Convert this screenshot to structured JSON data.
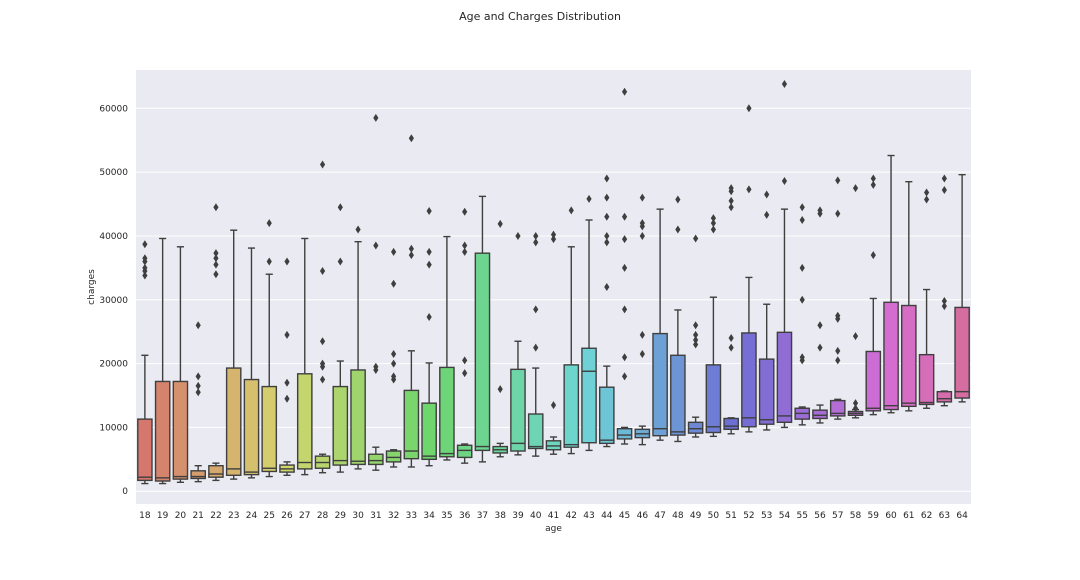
{
  "chart_data": {
    "type": "box",
    "title": "Age and Charges Distribution",
    "xlabel": "age",
    "ylabel": "charges",
    "ylim": [
      -2000,
      66000
    ],
    "yticks": [
      0,
      10000,
      20000,
      30000,
      40000,
      50000,
      60000
    ],
    "grid": true,
    "legend": "none",
    "categories": [
      "18",
      "19",
      "20",
      "21",
      "22",
      "23",
      "24",
      "25",
      "26",
      "27",
      "28",
      "29",
      "30",
      "31",
      "32",
      "33",
      "34",
      "35",
      "36",
      "37",
      "38",
      "39",
      "40",
      "41",
      "42",
      "43",
      "44",
      "45",
      "46",
      "47",
      "48",
      "49",
      "50",
      "51",
      "52",
      "53",
      "54",
      "55",
      "56",
      "57",
      "58",
      "59",
      "60",
      "61",
      "62",
      "63",
      "64"
    ],
    "boxes": [
      {
        "whislo": 1200,
        "q1": 1700,
        "med": 2200,
        "q3": 11300,
        "whishi": 21300,
        "fliers": [
          33800,
          34500,
          35000,
          36000,
          36500,
          38700
        ]
      },
      {
        "whislo": 1200,
        "q1": 1600,
        "med": 2100,
        "q3": 17200,
        "whishi": 39600,
        "fliers": []
      },
      {
        "whislo": 1400,
        "q1": 1900,
        "med": 2300,
        "q3": 17200,
        "whishi": 38300,
        "fliers": []
      },
      {
        "whislo": 1500,
        "q1": 2000,
        "med": 2300,
        "q3": 3200,
        "whishi": 4000,
        "fliers": [
          15500,
          16500,
          18000,
          26000
        ]
      },
      {
        "whislo": 1700,
        "q1": 2200,
        "med": 2700,
        "q3": 4000,
        "whishi": 4400,
        "fliers": [
          34000,
          35500,
          36500,
          37300,
          44500
        ]
      },
      {
        "whislo": 1900,
        "q1": 2500,
        "med": 3500,
        "q3": 19300,
        "whishi": 40900,
        "fliers": []
      },
      {
        "whislo": 2100,
        "q1": 2600,
        "med": 3000,
        "q3": 17500,
        "whishi": 38100,
        "fliers": []
      },
      {
        "whislo": 2300,
        "q1": 3100,
        "med": 3600,
        "q3": 16400,
        "whishi": 34000,
        "fliers": [
          36000,
          42000
        ]
      },
      {
        "whislo": 2500,
        "q1": 3000,
        "med": 3500,
        "q3": 4100,
        "whishi": 4600,
        "fliers": [
          14500,
          17000,
          24500,
          36000
        ]
      },
      {
        "whislo": 2600,
        "q1": 3500,
        "med": 4500,
        "q3": 18400,
        "whishi": 39600,
        "fliers": []
      },
      {
        "whislo": 2900,
        "q1": 3600,
        "med": 4500,
        "q3": 5500,
        "whishi": 5800,
        "fliers": [
          17500,
          19500,
          20000,
          23500,
          34500,
          51200
        ]
      },
      {
        "whislo": 3000,
        "q1": 4100,
        "med": 4800,
        "q3": 16400,
        "whishi": 20400,
        "fliers": [
          36000,
          44500
        ]
      },
      {
        "whislo": 3500,
        "q1": 4200,
        "med": 4700,
        "q3": 19000,
        "whishi": 39100,
        "fliers": [
          41000
        ]
      },
      {
        "whislo": 3300,
        "q1": 4200,
        "med": 4800,
        "q3": 5800,
        "whishi": 6900,
        "fliers": [
          19000,
          19500,
          38500,
          58500
        ]
      },
      {
        "whislo": 3800,
        "q1": 4600,
        "med": 5300,
        "q3": 6300,
        "whishi": 6500,
        "fliers": [
          17500,
          18000,
          20000,
          21500,
          32500,
          37500
        ]
      },
      {
        "whislo": 3800,
        "q1": 5100,
        "med": 6300,
        "q3": 15800,
        "whishi": 22000,
        "fliers": [
          37000,
          38000,
          55300
        ]
      },
      {
        "whislo": 4000,
        "q1": 5000,
        "med": 5500,
        "q3": 13800,
        "whishi": 20100,
        "fliers": [
          27300,
          35500,
          37500,
          43900
        ]
      },
      {
        "whislo": 4900,
        "q1": 5400,
        "med": 5900,
        "q3": 19400,
        "whishi": 39900,
        "fliers": []
      },
      {
        "whislo": 4400,
        "q1": 5300,
        "med": 6400,
        "q3": 7200,
        "whishi": 7400,
        "fliers": [
          18500,
          20500,
          37500,
          38500,
          43800
        ]
      },
      {
        "whislo": 4600,
        "q1": 6400,
        "med": 7000,
        "q3": 37300,
        "whishi": 46200,
        "fliers": []
      },
      {
        "whislo": 5400,
        "q1": 6000,
        "med": 6500,
        "q3": 7000,
        "whishi": 7500,
        "fliers": [
          16000,
          41900
        ]
      },
      {
        "whislo": 5700,
        "q1": 6300,
        "med": 7500,
        "q3": 19100,
        "whishi": 23500,
        "fliers": [
          40000
        ]
      },
      {
        "whislo": 5500,
        "q1": 6700,
        "med": 7000,
        "q3": 12100,
        "whishi": 19300,
        "fliers": [
          22500,
          28500,
          39000,
          40000
        ]
      },
      {
        "whislo": 5800,
        "q1": 6500,
        "med": 7100,
        "q3": 7900,
        "whishi": 8500,
        "fliers": [
          13500,
          39500,
          40200
        ]
      },
      {
        "whislo": 5900,
        "q1": 6900,
        "med": 7300,
        "q3": 19800,
        "whishi": 38300,
        "fliers": [
          44000
        ]
      },
      {
        "whislo": 6400,
        "q1": 7600,
        "med": 18800,
        "q3": 22400,
        "whishi": 42500,
        "fliers": [
          45800
        ]
      },
      {
        "whislo": 7000,
        "q1": 7500,
        "med": 8000,
        "q3": 16300,
        "whishi": 19600,
        "fliers": [
          32000,
          39000,
          40000,
          43000,
          46000,
          49000
        ]
      },
      {
        "whislo": 7400,
        "q1": 8200,
        "med": 8800,
        "q3": 9800,
        "whishi": 10000,
        "fliers": [
          18000,
          21000,
          28500,
          35000,
          39500,
          43000,
          62600
        ]
      },
      {
        "whislo": 7300,
        "q1": 8400,
        "med": 9000,
        "q3": 9700,
        "whishi": 10200,
        "fliers": [
          21500,
          24500,
          40000,
          41500,
          42000,
          46000
        ]
      },
      {
        "whislo": 8000,
        "q1": 8700,
        "med": 9800,
        "q3": 24700,
        "whishi": 44200,
        "fliers": []
      },
      {
        "whislo": 7800,
        "q1": 8800,
        "med": 9300,
        "q3": 21300,
        "whishi": 28400,
        "fliers": [
          41000,
          45700
        ]
      },
      {
        "whislo": 8500,
        "q1": 9100,
        "med": 9800,
        "q3": 10800,
        "whishi": 11600,
        "fliers": [
          23000,
          23700,
          24500,
          26000,
          39600
        ]
      },
      {
        "whislo": 8600,
        "q1": 9200,
        "med": 10100,
        "q3": 19800,
        "whishi": 30400,
        "fliers": [
          41000,
          42000,
          42800
        ]
      },
      {
        "whislo": 9000,
        "q1": 9700,
        "med": 10200,
        "q3": 11400,
        "whishi": 11500,
        "fliers": [
          22500,
          24000,
          44500,
          45500,
          47000,
          47500
        ]
      },
      {
        "whislo": 9300,
        "q1": 10100,
        "med": 11500,
        "q3": 24800,
        "whishi": 33500,
        "fliers": [
          47300,
          60000
        ]
      },
      {
        "whislo": 9600,
        "q1": 10500,
        "med": 11200,
        "q3": 20700,
        "whishi": 29300,
        "fliers": [
          43300,
          46500
        ]
      },
      {
        "whislo": 10000,
        "q1": 10800,
        "med": 11800,
        "q3": 24900,
        "whishi": 44200,
        "fliers": [
          48600,
          63800
        ]
      },
      {
        "whislo": 10400,
        "q1": 11300,
        "med": 12200,
        "q3": 13000,
        "whishi": 13200,
        "fliers": [
          20500,
          21000,
          30000,
          35000,
          42500,
          44500
        ]
      },
      {
        "whislo": 10700,
        "q1": 11400,
        "med": 11900,
        "q3": 12700,
        "whishi": 13500,
        "fliers": [
          22500,
          26000,
          43500,
          44000
        ]
      },
      {
        "whislo": 11300,
        "q1": 11800,
        "med": 12200,
        "q3": 14200,
        "whishi": 14400,
        "fliers": [
          20500,
          22000,
          27000,
          27500,
          43500,
          48700
        ]
      },
      {
        "whislo": 11500,
        "q1": 11900,
        "med": 12200,
        "q3": 12500,
        "whishi": 12800,
        "fliers": [
          13000,
          13800,
          24300,
          47500
        ]
      },
      {
        "whislo": 12000,
        "q1": 12600,
        "med": 13000,
        "q3": 21900,
        "whishi": 30200,
        "fliers": [
          37000,
          48000,
          49000
        ]
      },
      {
        "whislo": 12300,
        "q1": 12800,
        "med": 13400,
        "q3": 29600,
        "whishi": 52600,
        "fliers": []
      },
      {
        "whislo": 12600,
        "q1": 13300,
        "med": 13800,
        "q3": 29100,
        "whishi": 48500,
        "fliers": []
      },
      {
        "whislo": 13000,
        "q1": 13600,
        "med": 13900,
        "q3": 21400,
        "whishi": 31600,
        "fliers": [
          45700,
          46800
        ]
      },
      {
        "whislo": 13400,
        "q1": 14000,
        "med": 14500,
        "q3": 15600,
        "whishi": 15700,
        "fliers": [
          29000,
          29800,
          47200,
          49000
        ]
      },
      {
        "whislo": 14000,
        "q1": 14600,
        "med": 15600,
        "q3": 28800,
        "whishi": 49600,
        "fliers": []
      }
    ]
  }
}
